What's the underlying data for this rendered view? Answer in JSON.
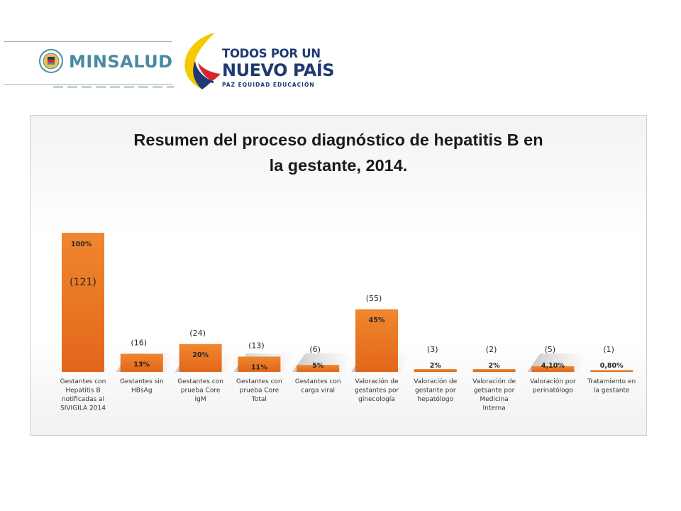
{
  "header": {
    "minsalud_label": "MINSALUD",
    "todos_line1": "TODOS POR UN",
    "todos_line2": "NUEVO PAÍS",
    "todos_line3": "PAZ  EQUIDAD  EDUCACIÓN"
  },
  "colors": {
    "bar": "#e8711f",
    "bar_light": "#f2913f",
    "brand_blue": "#1f3a73",
    "minsalud_blue": "#4a8aa4",
    "flag_yellow": "#f6c800",
    "flag_blue": "#1f3a73",
    "flag_red": "#d7262c"
  },
  "chart_data": {
    "type": "bar",
    "title_lines": [
      "Resumen del proceso diagnóstico de hepatitis B en",
      "la gestante, 2014."
    ],
    "xlabel": "",
    "ylabel": "",
    "ylim": [
      0,
      100
    ],
    "grid": false,
    "legend": "none",
    "categories": [
      [
        "Gestantes con",
        "Hepatitis B",
        "notificadas al",
        "SIVIGILA 2014"
      ],
      [
        "Gestantes sin",
        "HBsAg"
      ],
      [
        "Gestantes con",
        "prueba Core",
        "IgM"
      ],
      [
        "Gestantes con",
        "prueba Core",
        "Total"
      ],
      [
        "Gestantes con",
        "carga viral"
      ],
      [
        "Valoración de",
        "gestantes por",
        "ginecología"
      ],
      [
        "Valoración de",
        "gestante por",
        "hepatólogo"
      ],
      [
        "Valoración de",
        "getsante por",
        "Medicina",
        "Interna"
      ],
      [
        "Valoración por",
        "perinatólogo"
      ],
      [
        "Tratamiento en",
        "la gestante"
      ]
    ],
    "values": [
      100,
      13,
      20,
      11,
      5,
      45,
      2,
      2,
      4.1,
      0.8
    ],
    "value_labels": [
      "100%",
      "13%",
      "20%",
      "11%",
      "5%",
      "45%",
      "2%",
      "2%",
      "4,10%",
      "0,80%"
    ],
    "count_labels": [
      "(121)",
      "(16)",
      "(24)",
      "(13)",
      "(6)",
      "(55)",
      "(3)",
      "(2)",
      "(5)",
      "(1)"
    ]
  }
}
